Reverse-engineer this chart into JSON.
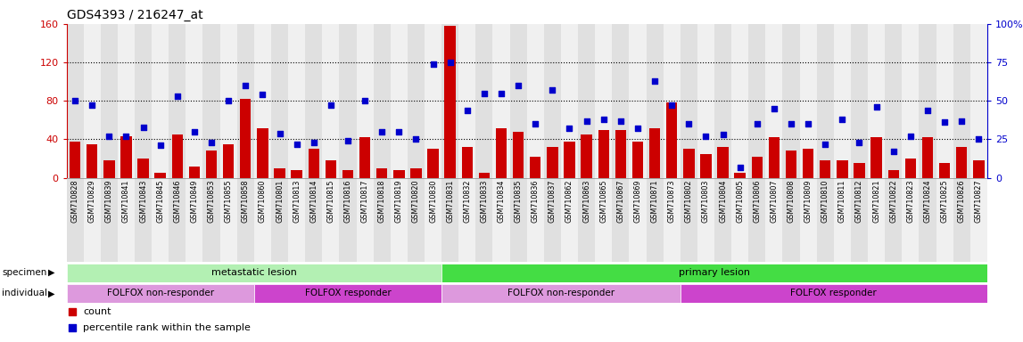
{
  "title": "GDS4393 / 216247_at",
  "samples": [
    "GSM710828",
    "GSM710829",
    "GSM710839",
    "GSM710841",
    "GSM710843",
    "GSM710845",
    "GSM710846",
    "GSM710849",
    "GSM710853",
    "GSM710855",
    "GSM710858",
    "GSM710860",
    "GSM710801",
    "GSM710813",
    "GSM710814",
    "GSM710815",
    "GSM710816",
    "GSM710817",
    "GSM710818",
    "GSM710819",
    "GSM710820",
    "GSM710830",
    "GSM710831",
    "GSM710832",
    "GSM710833",
    "GSM710834",
    "GSM710835",
    "GSM710836",
    "GSM710837",
    "GSM710862",
    "GSM710863",
    "GSM710865",
    "GSM710867",
    "GSM710869",
    "GSM710871",
    "GSM710873",
    "GSM710802",
    "GSM710803",
    "GSM710804",
    "GSM710805",
    "GSM710806",
    "GSM710807",
    "GSM710808",
    "GSM710809",
    "GSM710810",
    "GSM710811",
    "GSM710812",
    "GSM710821",
    "GSM710822",
    "GSM710823",
    "GSM710824",
    "GSM710825",
    "GSM710826",
    "GSM710827"
  ],
  "bar_values": [
    38,
    35,
    18,
    43,
    20,
    5,
    45,
    12,
    28,
    35,
    82,
    52,
    10,
    8,
    30,
    18,
    8,
    42,
    10,
    8,
    10,
    30,
    158,
    32,
    5,
    52,
    48,
    22,
    32,
    38,
    45,
    50,
    50,
    38,
    52,
    78,
    30,
    25,
    32,
    5,
    22,
    42,
    28,
    30,
    18,
    18,
    15,
    42,
    8,
    20,
    42,
    15,
    32,
    18
  ],
  "percentile_values": [
    50,
    47,
    27,
    27,
    33,
    21,
    53,
    30,
    23,
    50,
    60,
    54,
    29,
    22,
    23,
    47,
    24,
    50,
    30,
    30,
    25,
    74,
    75,
    44,
    55,
    55,
    60,
    35,
    57,
    32,
    37,
    38,
    37,
    32,
    63,
    47,
    35,
    27,
    28,
    7,
    35,
    45,
    35,
    35,
    22,
    38,
    23,
    46,
    17,
    27,
    44,
    36,
    37,
    25
  ],
  "bar_color": "#cc0000",
  "percentile_color": "#0000cc",
  "ylim_left": [
    0,
    160
  ],
  "ylim_right": [
    0,
    100
  ],
  "yticks_left": [
    0,
    40,
    80,
    120,
    160
  ],
  "yticks_right": [
    0,
    25,
    50,
    75,
    100
  ],
  "ytick_right_labels": [
    "0",
    "25",
    "50",
    "75",
    "100%"
  ],
  "grid_values": [
    40,
    80,
    120
  ],
  "specimen_groups": [
    {
      "label": "metastatic lesion",
      "start": 0,
      "end": 21,
      "color": "#b3f0b3"
    },
    {
      "label": "primary lesion",
      "start": 22,
      "end": 53,
      "color": "#44dd44"
    }
  ],
  "individual_groups": [
    {
      "label": "FOLFOX non-responder",
      "start": 0,
      "end": 10,
      "color": "#dd99dd"
    },
    {
      "label": "FOLFOX responder",
      "start": 11,
      "end": 21,
      "color": "#cc44cc"
    },
    {
      "label": "FOLFOX non-responder",
      "start": 22,
      "end": 35,
      "color": "#dd99dd"
    },
    {
      "label": "FOLFOX responder",
      "start": 36,
      "end": 53,
      "color": "#cc44cc"
    }
  ],
  "bar_color_legend": "#cc0000",
  "percentile_color_legend": "#0000cc",
  "title_fontsize": 10,
  "bar_width": 0.65,
  "col_bg_even": "#e0e0e0",
  "col_bg_odd": "#f0f0f0",
  "right_axis_color": "#0000cc",
  "left_axis_color": "#cc0000"
}
